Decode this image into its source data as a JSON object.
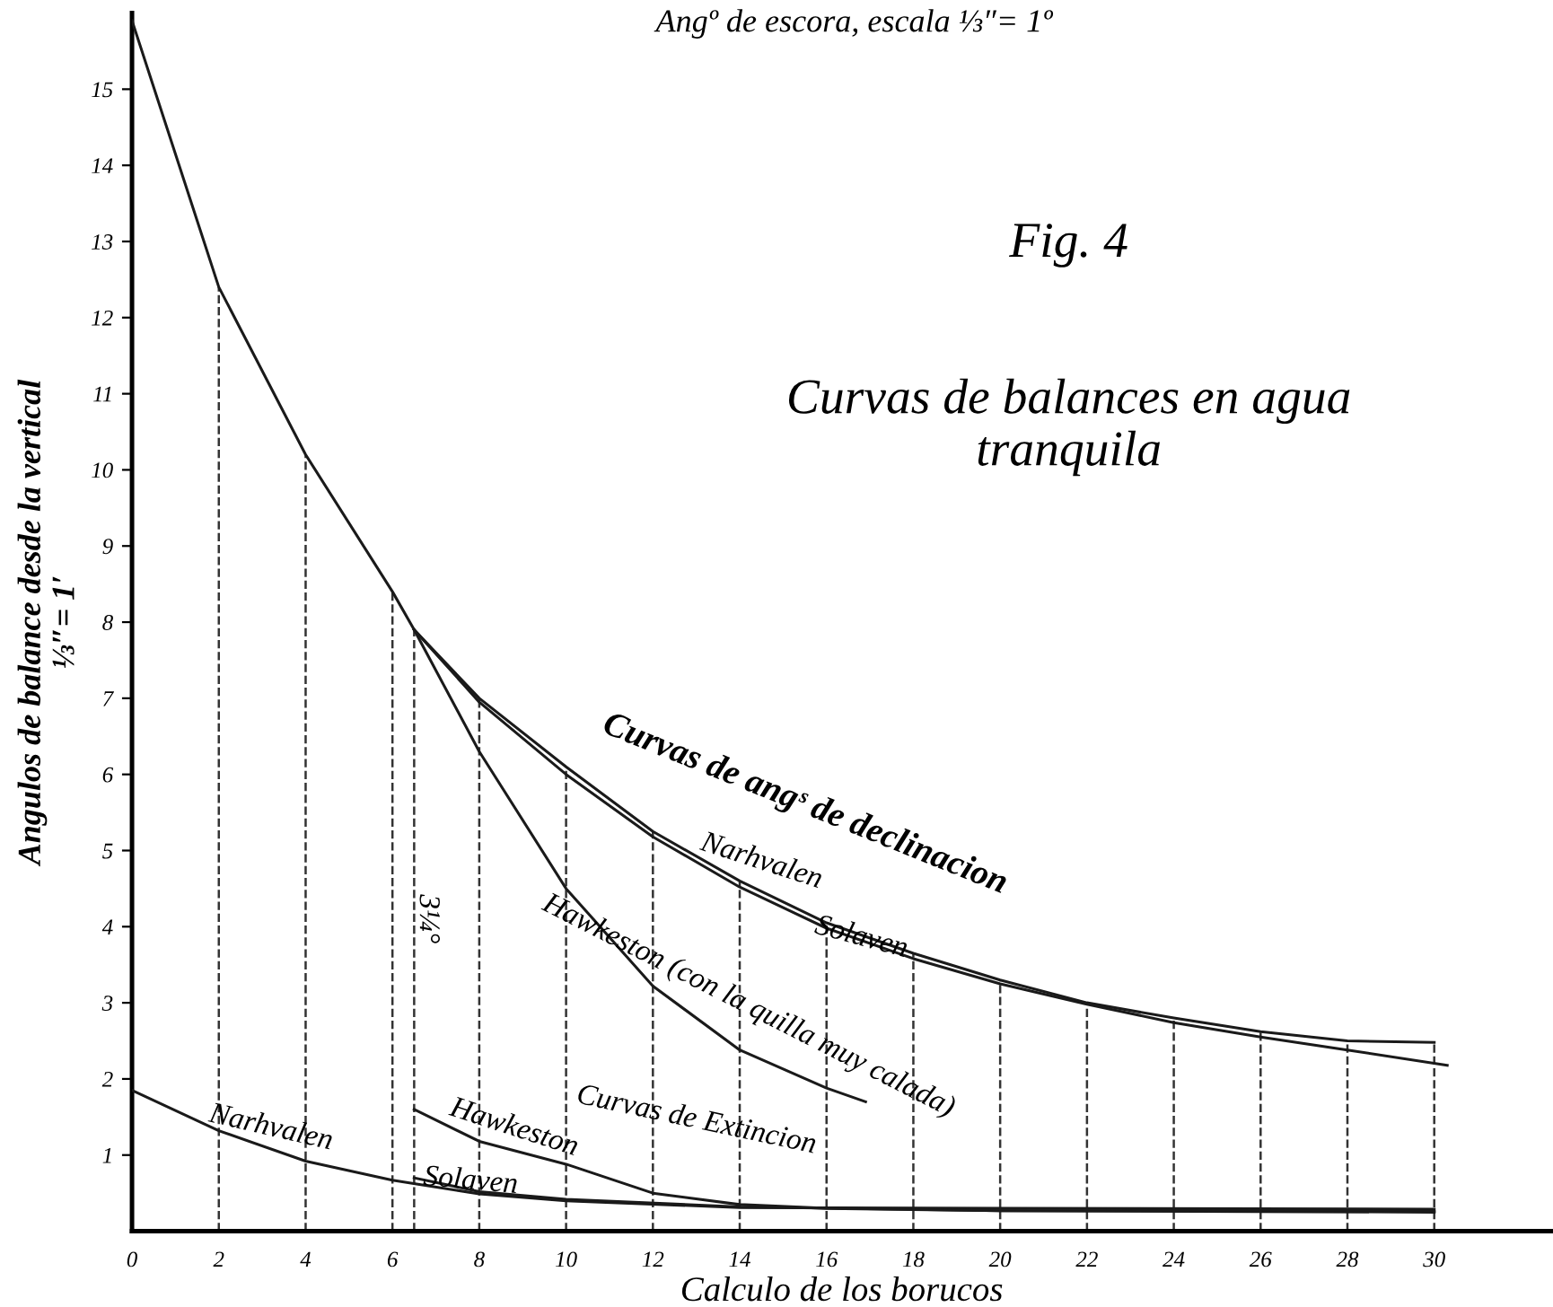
{
  "chart_data": {
    "type": "line",
    "title": "Fig. 4",
    "subtitle": "Curvas de balances en agua\ntranquila",
    "xlabel": "Calculo de los borucos",
    "ylabel": "Angulos de balance desde la vertical\n⅓″= 1′",
    "xlim": [
      0,
      32.7
    ],
    "ylim": [
      0,
      16
    ],
    "xticks": [
      0,
      2,
      4,
      6,
      8,
      10,
      12,
      14,
      16,
      18,
      20,
      22,
      24,
      26,
      28,
      30
    ],
    "yticks": [
      1,
      2,
      3,
      4,
      5,
      6,
      7,
      8,
      9,
      10,
      11,
      12,
      13,
      14,
      15
    ],
    "grid": false,
    "marker": "none",
    "line_style": "solid",
    "series": [
      {
        "color": "#1a1a1a",
        "x": [
          0,
          2,
          4,
          6,
          6.5,
          8,
          10,
          12,
          14,
          16,
          18,
          20,
          22,
          24,
          26,
          28,
          30
        ],
        "values": [
          15.9,
          12.4,
          10.2,
          8.4,
          7.9,
          7.0,
          6.1,
          5.25,
          4.6,
          4.05,
          3.65,
          3.3,
          3.0,
          2.8,
          2.62,
          2.5,
          2.48
        ]
      },
      {
        "color": "#1a1a1a",
        "x": [
          6.5,
          8,
          10,
          12,
          14,
          16,
          18,
          20,
          22,
          24,
          26,
          28,
          30.3
        ],
        "values": [
          7.9,
          6.95,
          6.0,
          5.18,
          4.52,
          3.98,
          3.58,
          3.25,
          2.98,
          2.74,
          2.55,
          2.38,
          2.18
        ]
      },
      {
        "color": "#1a1a1a",
        "x": [
          6.5,
          8,
          10,
          12,
          14,
          16,
          16.9
        ],
        "values": [
          7.9,
          6.3,
          4.5,
          3.22,
          2.38,
          1.88,
          1.7
        ]
      },
      {
        "color": "#1a1a1a",
        "x": [
          0,
          2,
          4,
          6,
          8,
          10,
          14,
          20,
          30
        ],
        "values": [
          1.85,
          1.32,
          0.92,
          0.67,
          0.49,
          0.4,
          0.31,
          0.3,
          0.29
        ]
      },
      {
        "color": "#1a1a1a",
        "x": [
          6.5,
          8,
          10,
          14,
          20,
          30
        ],
        "values": [
          0.7,
          0.52,
          0.42,
          0.32,
          0.27,
          0.25
        ]
      },
      {
        "color": "#1a1a1a",
        "x": [
          6.5,
          8,
          10,
          12,
          14,
          16,
          20,
          30
        ],
        "values": [
          1.6,
          1.18,
          0.88,
          0.5,
          0.35,
          0.3,
          0.27,
          0.26
        ]
      }
    ],
    "ref_lines": [
      {
        "axis": "x",
        "value": 2,
        "line_style": "dashed"
      },
      {
        "axis": "x",
        "value": 4,
        "line_style": "dashed"
      },
      {
        "axis": "x",
        "value": 6,
        "line_style": "dashed"
      },
      {
        "axis": "x",
        "value": 6.5,
        "line_style": "dashed"
      },
      {
        "axis": "x",
        "value": 8,
        "line_style": "dashed"
      },
      {
        "axis": "x",
        "value": 10,
        "line_style": "dashed"
      },
      {
        "axis": "x",
        "value": 12,
        "line_style": "dashed"
      },
      {
        "axis": "x",
        "value": 14,
        "line_style": "dashed"
      },
      {
        "axis": "x",
        "value": 16,
        "line_style": "dashed"
      },
      {
        "axis": "x",
        "value": 18,
        "line_style": "dashed"
      },
      {
        "axis": "x",
        "value": 20,
        "line_style": "dashed"
      },
      {
        "axis": "x",
        "value": 22,
        "line_style": "dashed"
      },
      {
        "axis": "x",
        "value": 24,
        "line_style": "dashed"
      },
      {
        "axis": "x",
        "value": 26,
        "line_style": "dashed"
      },
      {
        "axis": "x",
        "value": 28,
        "line_style": "dashed"
      },
      {
        "axis": "x",
        "value": 30,
        "line_style": "dashed"
      }
    ],
    "annotations": [
      "Curvas de angˢ de declinacion",
      "Narhvalen",
      "Solaven",
      "Hawkeston (con la quilla muy calada)",
      "Curvas de Extincion",
      "Narhvalen",
      "Hawkeston",
      "Solaven",
      "3¼°",
      "Angº de escora, escala ⅓″= 1º"
    ]
  }
}
